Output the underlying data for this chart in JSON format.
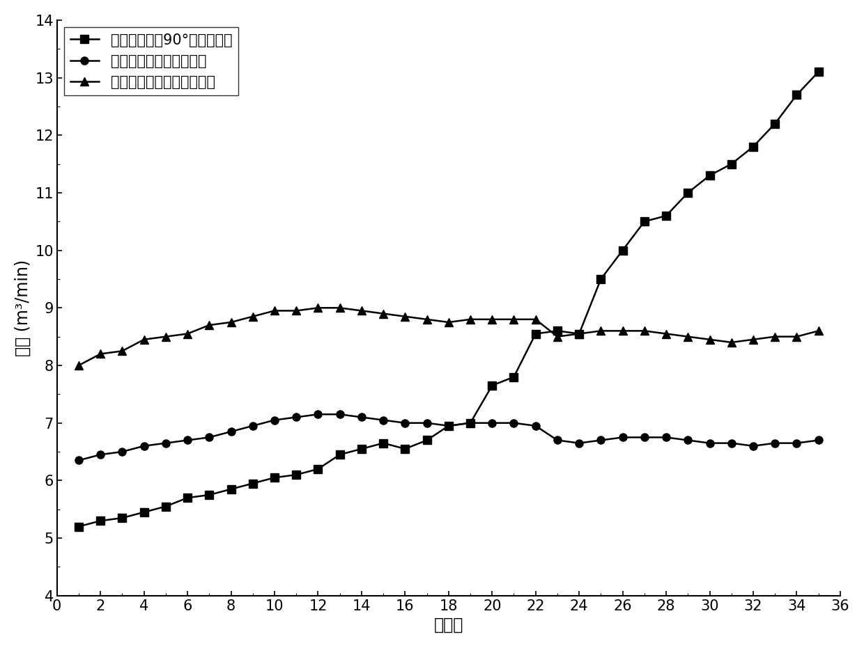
{
  "title": "",
  "xlabel": "楼层数",
  "ylabel": "流量 (m³/min)",
  "xlim": [
    0,
    36
  ],
  "ylim": [
    4,
    14
  ],
  "xticks": [
    0,
    2,
    4,
    6,
    8,
    10,
    12,
    14,
    16,
    18,
    20,
    22,
    24,
    26,
    28,
    30,
    32,
    34,
    36
  ],
  "yticks": [
    4,
    5,
    6,
    7,
    8,
    9,
    10,
    11,
    12,
    13,
    14
  ],
  "series1": {
    "label": "阀片角度都为90°，没有主机",
    "x": [
      1,
      2,
      3,
      4,
      5,
      6,
      7,
      8,
      9,
      10,
      11,
      12,
      13,
      14,
      15,
      16,
      17,
      18,
      19,
      20,
      21,
      22,
      23,
      24,
      25,
      26,
      27,
      28,
      29,
      30,
      31,
      32,
      33,
      34,
      35
    ],
    "y": [
      5.2,
      5.3,
      5.35,
      5.45,
      5.55,
      5.7,
      5.75,
      5.85,
      5.95,
      6.05,
      6.1,
      6.2,
      6.45,
      6.55,
      6.65,
      6.55,
      6.7,
      6.95,
      7.0,
      7.65,
      7.8,
      8.55,
      8.6,
      8.55,
      9.5,
      10.0,
      10.5,
      10.6,
      11.0,
      11.3,
      11.5,
      11.8,
      12.2,
      12.7,
      13.1
    ],
    "marker": "s",
    "color": "black",
    "linewidth": 1.8,
    "markersize": 8
  },
  "series2": {
    "label": "调整阀片角度，没有主机",
    "x": [
      1,
      2,
      3,
      4,
      5,
      6,
      7,
      8,
      9,
      10,
      11,
      12,
      13,
      14,
      15,
      16,
      17,
      18,
      19,
      20,
      21,
      22,
      23,
      24,
      25,
      26,
      27,
      28,
      29,
      30,
      31,
      32,
      33,
      34,
      35
    ],
    "y": [
      6.35,
      6.45,
      6.5,
      6.6,
      6.65,
      6.7,
      6.75,
      6.85,
      6.95,
      7.05,
      7.1,
      7.15,
      7.15,
      7.1,
      7.05,
      7.0,
      7.0,
      6.95,
      7.0,
      7.0,
      7.0,
      6.95,
      6.7,
      6.65,
      6.7,
      6.75,
      6.75,
      6.75,
      6.7,
      6.65,
      6.65,
      6.6,
      6.65,
      6.65,
      6.7
    ],
    "marker": "o",
    "color": "black",
    "linewidth": 1.8,
    "markersize": 8
  },
  "series3": {
    "label": "调整阀片角度，有主机开启",
    "x": [
      1,
      2,
      3,
      4,
      5,
      6,
      7,
      8,
      9,
      10,
      11,
      12,
      13,
      14,
      15,
      16,
      17,
      18,
      19,
      20,
      21,
      22,
      23,
      24,
      25,
      26,
      27,
      28,
      29,
      30,
      31,
      32,
      33,
      34,
      35
    ],
    "y": [
      8.0,
      8.2,
      8.25,
      8.45,
      8.5,
      8.55,
      8.7,
      8.75,
      8.85,
      8.95,
      8.95,
      9.0,
      9.0,
      8.95,
      8.9,
      8.85,
      8.8,
      8.75,
      8.8,
      8.8,
      8.8,
      8.8,
      8.5,
      8.55,
      8.6,
      8.6,
      8.6,
      8.55,
      8.5,
      8.45,
      8.4,
      8.45,
      8.5,
      8.5,
      8.6
    ],
    "marker": "^",
    "color": "black",
    "linewidth": 1.8,
    "markersize": 9
  },
  "legend_fontsize": 15,
  "axis_fontsize": 17,
  "tick_fontsize": 15,
  "background_color": "#ffffff"
}
